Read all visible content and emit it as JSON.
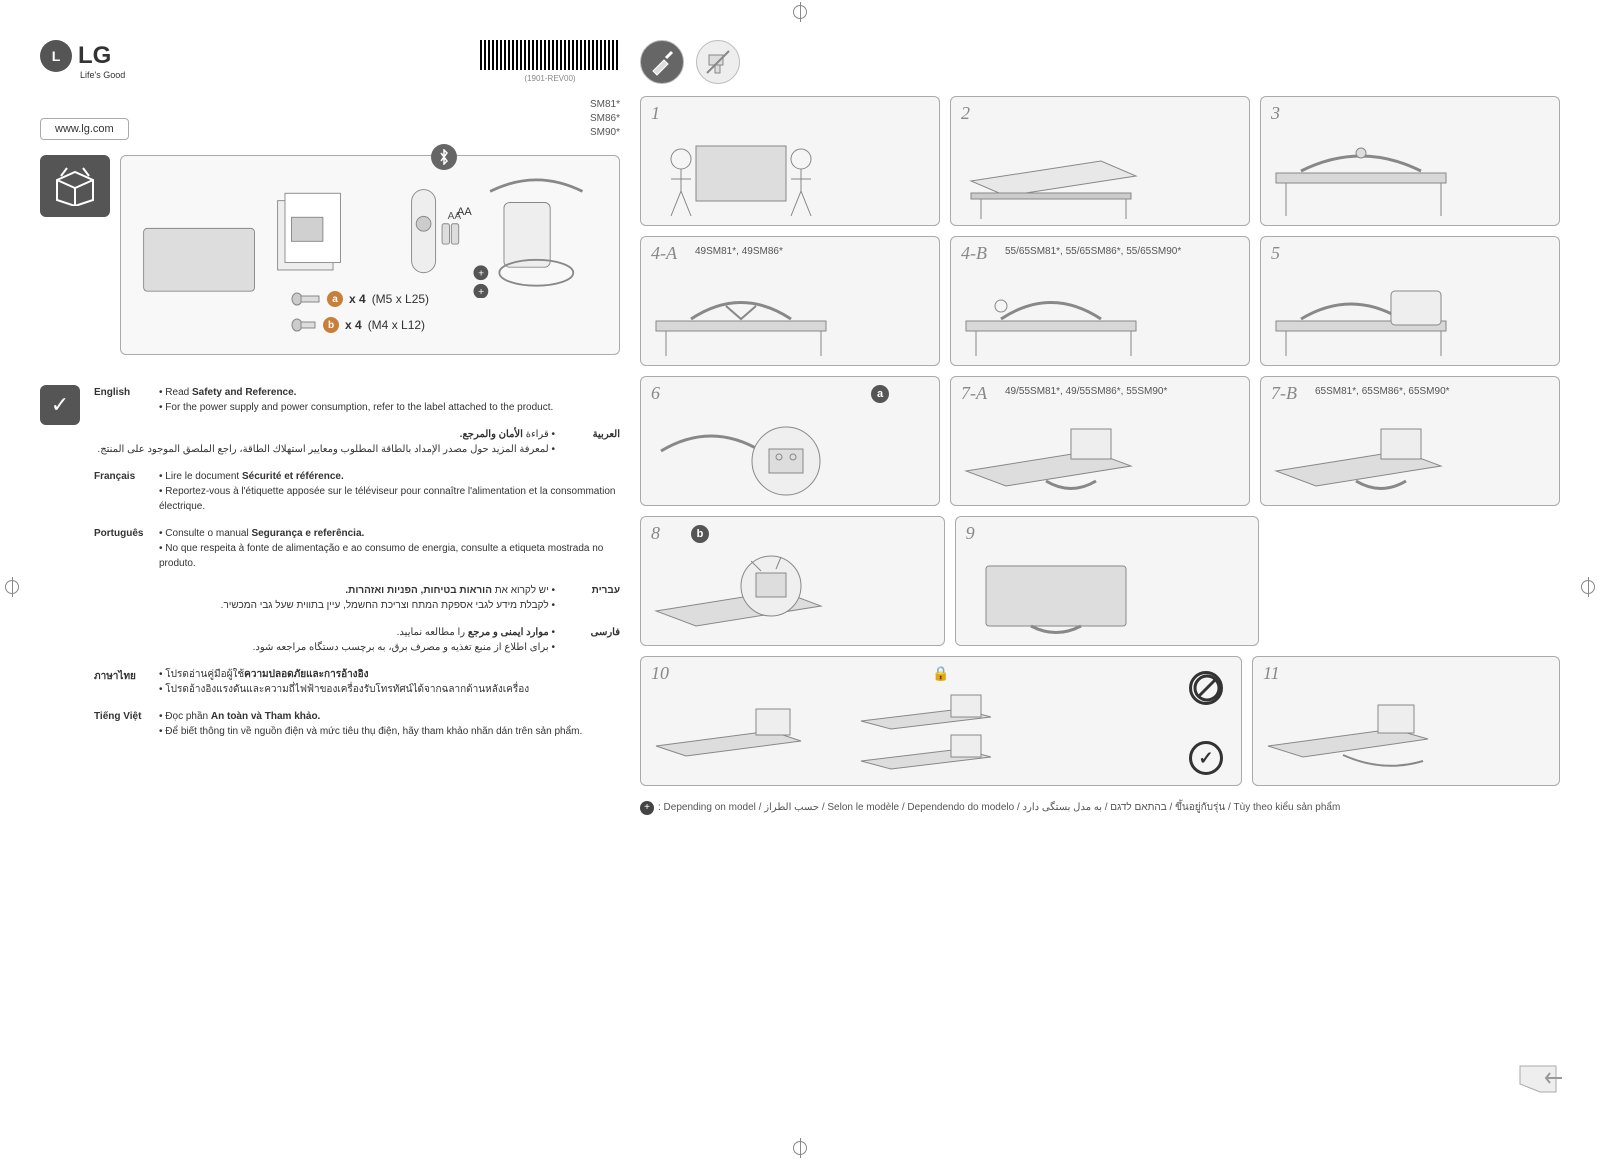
{
  "header": {
    "brand": "LG",
    "tagline": "Life's Good",
    "revision": "(1901-REV00)"
  },
  "url": "www.lg.com",
  "models": [
    "SM81*",
    "SM86*",
    "SM90*"
  ],
  "screws": {
    "a": {
      "badge": "a",
      "qty": "x 4",
      "spec": "(M5 x L25)"
    },
    "b": {
      "badge": "b",
      "qty": "x 4",
      "spec": "(M4 x L12)"
    }
  },
  "remote_batt": "AA",
  "languages": [
    {
      "label": "English",
      "rtl": false,
      "line1_pre": "• Read ",
      "line1_bold": "Safety and Reference.",
      "line2": "• For the power supply and power consumption, refer to the label attached to the product."
    },
    {
      "label": "العربية",
      "rtl": true,
      "line1_pre": "• قراءة ",
      "line1_bold": "الأمان والمرجع.",
      "line2": "• لمعرفة المزيد حول مصدر الإمداد بالطاقة المطلوب ومعايير استهلاك الطاقة، راجع الملصق الموجود على المنتج."
    },
    {
      "label": "Français",
      "rtl": false,
      "line1_pre": "• Lire le document ",
      "line1_bold": "Sécurité et référence.",
      "line2": "• Reportez-vous à l'étiquette apposée sur le téléviseur pour connaître l'alimentation et la consommation électrique."
    },
    {
      "label": "Português",
      "rtl": false,
      "line1_pre": "• Consulte o manual ",
      "line1_bold": "Segurança e referência.",
      "line2": "• No que respeita à fonte de alimentação e ao consumo de energia, consulte a etiqueta mostrada no produto."
    },
    {
      "label": "עברית",
      "rtl": true,
      "line1_pre": "• יש לקרוא את ",
      "line1_bold": "הוראות בטיחות, הפניות ואזהרות.",
      "line2": "• לקבלת מידע לגבי אספקת המתח וצריכת החשמל, עיין בתווית שעל גבי המכשיר."
    },
    {
      "label": "فارسی",
      "rtl": true,
      "line1_pre": "• ",
      "line1_bold": "موارد ایمنی و مرجع",
      "line1_post": " را مطالعه نمایید.",
      "line2": "• برای اطلاع از منبع تغذیه و مصرف برق، به برچسب دستگاه مراجعه شود."
    },
    {
      "label": "ภาษาไทย",
      "rtl": false,
      "line1_pre": "• โปรดอ่านคู่มือผู้ใช้",
      "line1_bold": "ความปลอดภัยและการอ้างอิง",
      "line2": "• โปรดอ้างอิงแรงดันและความถี่ไฟฟ้าของเครื่องรับโทรทัศน์ได้จากฉลากด้านหลังเครื่อง"
    },
    {
      "label": "Tiếng Việt",
      "rtl": false,
      "line1_pre": "• Đọc phần ",
      "line1_bold": "An toàn và Tham khảo.",
      "line2": "• Để biết thông tin về nguồn điện và mức tiêu thụ điện, hãy tham khảo nhãn dán trên sản phẩm."
    }
  ],
  "steps": {
    "s1": "1",
    "s2": "2",
    "s3": "3",
    "s4a": "4-A",
    "s4a_models": "49SM81*, 49SM86*",
    "s4b": "4-B",
    "s4b_models": "55/65SM81*, 55/65SM86*, 55/65SM90*",
    "s5": "5",
    "s6": "6",
    "s6_badge": "a",
    "s7a": "7-A",
    "s7a_models": "49/55SM81*, 49/55SM86*, 55SM90*",
    "s7b": "7-B",
    "s7b_models": "65SM81*, 65SM86*, 65SM90*",
    "s8": "8",
    "s8_badge": "b",
    "s9": "9",
    "s10": "10",
    "s11": "11"
  },
  "footer": ": Depending on model / حسب الطراز / Selon le modèle / Dependendo do modelo / בהתאם לדגם / به مدل بستگی دارد / ขึ้นอยู่กับรุ่น / Tùy theo kiểu sản phẩm"
}
